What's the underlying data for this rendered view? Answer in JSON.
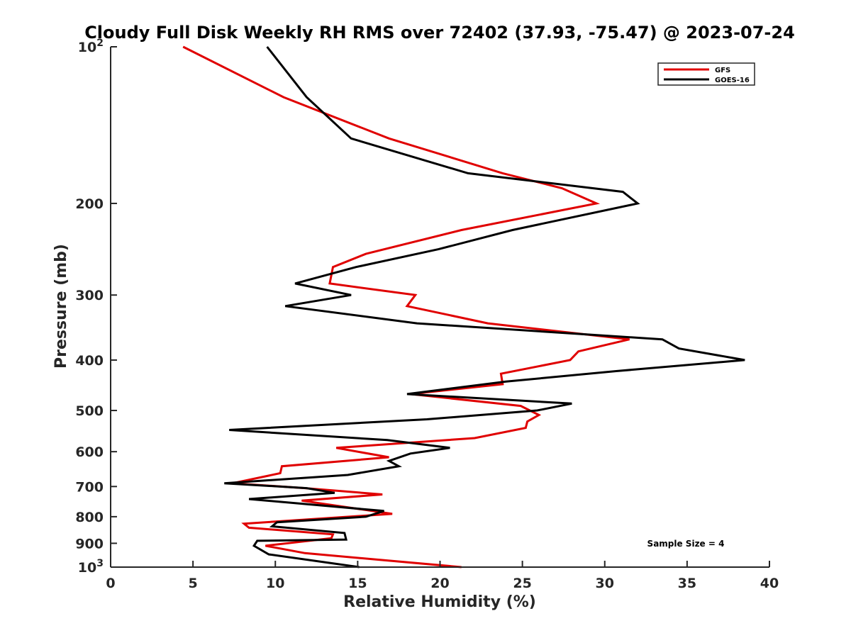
{
  "chart_data": {
    "type": "line",
    "title": "Cloudy Full Disk Weekly RH RMS over 72402 (37.93, -75.47) @ 2023-07-24",
    "xlabel": "Relative Humidity (%)",
    "ylabel": "Pressure (mb)",
    "xlim": [
      0,
      40
    ],
    "ylim": [
      100,
      1000
    ],
    "y_scale": "log",
    "y_reversed": true,
    "grid": false,
    "legend_position": "top-right",
    "x_ticks": [
      0,
      5,
      10,
      15,
      20,
      25,
      30,
      35,
      40
    ],
    "x_tick_labels": [
      "0",
      "5",
      "10",
      "15",
      "20",
      "25",
      "30",
      "35",
      "40"
    ],
    "y_ticks": [
      100,
      200,
      300,
      400,
      500,
      600,
      700,
      800,
      900,
      1000
    ],
    "y_tick_labels": [
      {
        "base": "10",
        "sup": "2"
      },
      {
        "base": "200",
        "sup": ""
      },
      {
        "base": "300",
        "sup": ""
      },
      {
        "base": "400",
        "sup": ""
      },
      {
        "base": "500",
        "sup": ""
      },
      {
        "base": "600",
        "sup": ""
      },
      {
        "base": "700",
        "sup": ""
      },
      {
        "base": "800",
        "sup": ""
      },
      {
        "base": "900",
        "sup": ""
      },
      {
        "base": "10",
        "sup": "3"
      }
    ],
    "annotation": "Sample Size = 4",
    "series": [
      {
        "name": "GFS",
        "color": "#e00000",
        "points": [
          {
            "x": 4.4,
            "y": 100
          },
          {
            "x": 10.5,
            "y": 125
          },
          {
            "x": 16.9,
            "y": 150
          },
          {
            "x": 23.8,
            "y": 175
          },
          {
            "x": 27.4,
            "y": 187
          },
          {
            "x": 29.5,
            "y": 200
          },
          {
            "x": 21.3,
            "y": 225
          },
          {
            "x": 15.5,
            "y": 250
          },
          {
            "x": 13.5,
            "y": 265
          },
          {
            "x": 13.3,
            "y": 285
          },
          {
            "x": 18.5,
            "y": 300
          },
          {
            "x": 18.0,
            "y": 315
          },
          {
            "x": 22.9,
            "y": 340
          },
          {
            "x": 31.5,
            "y": 365
          },
          {
            "x": 28.4,
            "y": 385
          },
          {
            "x": 27.9,
            "y": 400
          },
          {
            "x": 23.7,
            "y": 425
          },
          {
            "x": 23.8,
            "y": 445
          },
          {
            "x": 18.2,
            "y": 465
          },
          {
            "x": 24.9,
            "y": 490
          },
          {
            "x": 26.0,
            "y": 510
          },
          {
            "x": 25.3,
            "y": 525
          },
          {
            "x": 25.2,
            "y": 540
          },
          {
            "x": 22.1,
            "y": 565
          },
          {
            "x": 13.7,
            "y": 590
          },
          {
            "x": 16.9,
            "y": 615
          },
          {
            "x": 10.4,
            "y": 640
          },
          {
            "x": 10.3,
            "y": 660
          },
          {
            "x": 7.4,
            "y": 690
          },
          {
            "x": 11.8,
            "y": 705
          },
          {
            "x": 16.5,
            "y": 725
          },
          {
            "x": 11.6,
            "y": 745
          },
          {
            "x": 17.1,
            "y": 790
          },
          {
            "x": 8.1,
            "y": 825
          },
          {
            "x": 8.4,
            "y": 840
          },
          {
            "x": 13.5,
            "y": 865
          },
          {
            "x": 13.4,
            "y": 880
          },
          {
            "x": 9.4,
            "y": 910
          },
          {
            "x": 11.8,
            "y": 940
          },
          {
            "x": 21.3,
            "y": 1000
          }
        ]
      },
      {
        "name": "GOES-16",
        "color": "#000000",
        "points": [
          {
            "x": 9.5,
            "y": 100
          },
          {
            "x": 11.9,
            "y": 125
          },
          {
            "x": 14.6,
            "y": 150
          },
          {
            "x": 21.7,
            "y": 175
          },
          {
            "x": 31.1,
            "y": 190
          },
          {
            "x": 32.0,
            "y": 200
          },
          {
            "x": 24.4,
            "y": 225
          },
          {
            "x": 19.9,
            "y": 245
          },
          {
            "x": 14.9,
            "y": 265
          },
          {
            "x": 11.2,
            "y": 285
          },
          {
            "x": 14.6,
            "y": 300
          },
          {
            "x": 10.6,
            "y": 315
          },
          {
            "x": 18.6,
            "y": 340
          },
          {
            "x": 33.5,
            "y": 365
          },
          {
            "x": 34.5,
            "y": 380
          },
          {
            "x": 38.5,
            "y": 400
          },
          {
            "x": 30.7,
            "y": 420
          },
          {
            "x": 24.0,
            "y": 440
          },
          {
            "x": 18.0,
            "y": 465
          },
          {
            "x": 28.0,
            "y": 485
          },
          {
            "x": 25.9,
            "y": 500
          },
          {
            "x": 19.2,
            "y": 520
          },
          {
            "x": 7.2,
            "y": 545
          },
          {
            "x": 16.8,
            "y": 570
          },
          {
            "x": 20.6,
            "y": 590
          },
          {
            "x": 18.2,
            "y": 605
          },
          {
            "x": 16.9,
            "y": 625
          },
          {
            "x": 17.5,
            "y": 640
          },
          {
            "x": 14.4,
            "y": 665
          },
          {
            "x": 6.9,
            "y": 690
          },
          {
            "x": 11.9,
            "y": 705
          },
          {
            "x": 13.6,
            "y": 720
          },
          {
            "x": 8.4,
            "y": 740
          },
          {
            "x": 16.6,
            "y": 780
          },
          {
            "x": 15.5,
            "y": 800
          },
          {
            "x": 10.1,
            "y": 820
          },
          {
            "x": 9.8,
            "y": 835
          },
          {
            "x": 14.2,
            "y": 860
          },
          {
            "x": 14.3,
            "y": 885
          },
          {
            "x": 8.9,
            "y": 890
          },
          {
            "x": 8.7,
            "y": 910
          },
          {
            "x": 9.6,
            "y": 945
          },
          {
            "x": 15.1,
            "y": 1000
          }
        ]
      }
    ]
  }
}
